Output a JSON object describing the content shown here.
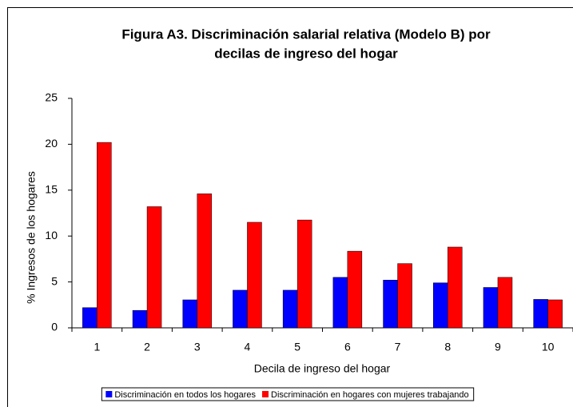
{
  "chart_data": {
    "type": "bar",
    "title_lines": [
      "Figura A3. Discriminación salarial relativa (Modelo B) por",
      "decilas de ingreso del hogar"
    ],
    "x_label": "Decila de ingreso del hogar",
    "y_label": "% Ingresos de los hogares",
    "categories": [
      "1",
      "2",
      "3",
      "4",
      "5",
      "6",
      "7",
      "8",
      "9",
      "10"
    ],
    "series": [
      {
        "name": "Discriminación en todos los hogares",
        "color": "#0000ff",
        "values": [
          2.2,
          1.9,
          3.05,
          4.1,
          4.1,
          5.5,
          5.2,
          4.9,
          4.4,
          3.1
        ]
      },
      {
        "name": "Discriminación en hogares con mujeres trabajando",
        "color": "#ff0000",
        "values": [
          20.2,
          13.2,
          14.6,
          11.5,
          11.75,
          8.35,
          7.0,
          8.8,
          5.5,
          3.05
        ]
      }
    ],
    "ylim": [
      0,
      25
    ],
    "yticks": [
      0,
      5,
      10,
      15,
      20,
      25
    ],
    "grid": false
  }
}
